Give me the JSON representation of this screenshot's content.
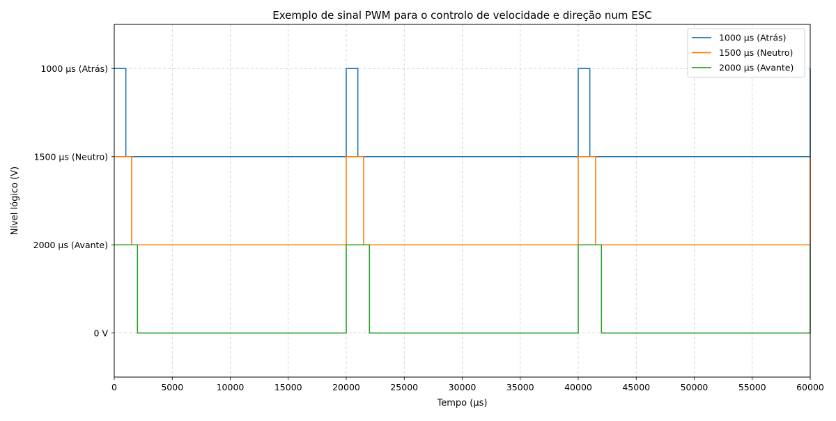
{
  "chart_data": {
    "type": "line",
    "title": "Exemplo de sinal PWM para o controlo de velocidade e direção num ESC",
    "xlabel": "Tempo (µs)",
    "ylabel": "Nível lógico (V)",
    "xlim": [
      0,
      60000
    ],
    "ylim": [
      -0.5,
      3.5
    ],
    "x_ticks": [
      0,
      5000,
      10000,
      15000,
      20000,
      25000,
      30000,
      35000,
      40000,
      45000,
      50000,
      55000,
      60000
    ],
    "y_ticks": [
      {
        "value": 0,
        "label": "0 V"
      },
      {
        "value": 1,
        "label": "2000 µs (Avante)"
      },
      {
        "value": 2,
        "label": "1500 µs (Neutro)"
      },
      {
        "value": 3,
        "label": "1000 µs (Atrás)"
      }
    ],
    "grid": true,
    "grid_style": "dashed",
    "legend_position": "top-right",
    "period_us": 20000,
    "series": [
      {
        "name": "1000 µs (Atrás)",
        "color": "#1f77b4",
        "pulse_width_us": 1000,
        "low_level": 2,
        "high_level": 3
      },
      {
        "name": "1500 µs (Neutro)",
        "color": "#ff7f0e",
        "pulse_width_us": 1500,
        "low_level": 1,
        "high_level": 2
      },
      {
        "name": "2000 µs (Avante)",
        "color": "#2ca02c",
        "pulse_width_us": 2000,
        "low_level": 0,
        "high_level": 1
      }
    ]
  }
}
